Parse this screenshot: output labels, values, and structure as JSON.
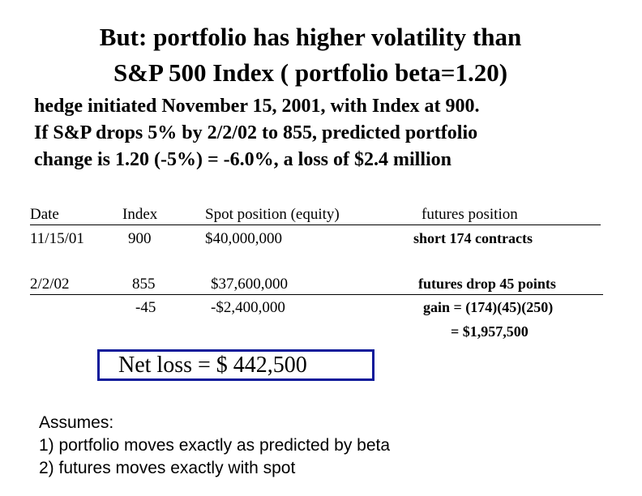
{
  "title": {
    "line1": "But: portfolio has higher volatility than",
    "line2": "S&P 500 Index  ( portfolio beta=1.20)"
  },
  "intro": {
    "line1": "hedge initiated November 15, 2001, with Index at 900.",
    "line2": "If S&P drops 5% by 2/2/02 to 855, predicted portfolio",
    "line3": "change is 1.20 (-5%) =  -6.0%, a loss of $2.4 million"
  },
  "table": {
    "headers": {
      "date": "Date",
      "index": "Index",
      "spot": "Spot position (equity)",
      "futures": "futures position"
    },
    "row1": {
      "date": "11/15/01",
      "index": "900",
      "spot": "$40,000,000",
      "futures": "short 174 contracts"
    },
    "row2": {
      "date": "2/2/02",
      "index": "855",
      "index_change": "-45",
      "spot": "$37,600,000",
      "spot_change": "-$2,400,000",
      "futures": "futures drop 45 points",
      "futures_gain": "gain = (174)(45)(250)",
      "futures_total": "= $1,957,500"
    }
  },
  "net": {
    "label": "Net loss =   $ 442,500",
    "border_color": "#0c1a9a"
  },
  "assumptions": {
    "heading": "Assumes:",
    "items": [
      "1)  portfolio moves exactly as predicted by beta",
      "2)  futures moves exactly with spot"
    ]
  }
}
